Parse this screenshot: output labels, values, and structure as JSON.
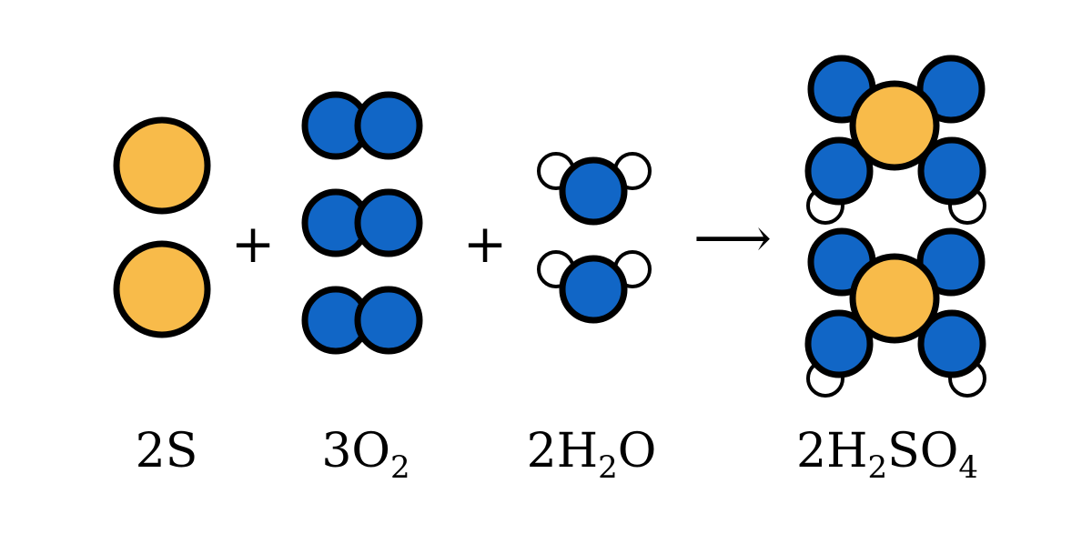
{
  "colors": {
    "sulfur": "#F8BB4A",
    "oxygen": "#1166C6",
    "hydrogen": "#FFFFFF",
    "outline": "#000000"
  },
  "operators": {
    "plus_1": "+",
    "plus_2": "+",
    "arrow": "⟶"
  },
  "labels": {
    "sulfur": {
      "coef": "2",
      "sym1": "S"
    },
    "oxygen": {
      "coef": "3",
      "sym1": "O",
      "sub1": "2"
    },
    "water": {
      "coef": "2",
      "sym1": "H",
      "sub1": "2",
      "sym2": "O"
    },
    "acid": {
      "coef": "2",
      "sym1": "H",
      "sub1": "2",
      "sym2": "SO",
      "sub2": "4"
    }
  }
}
